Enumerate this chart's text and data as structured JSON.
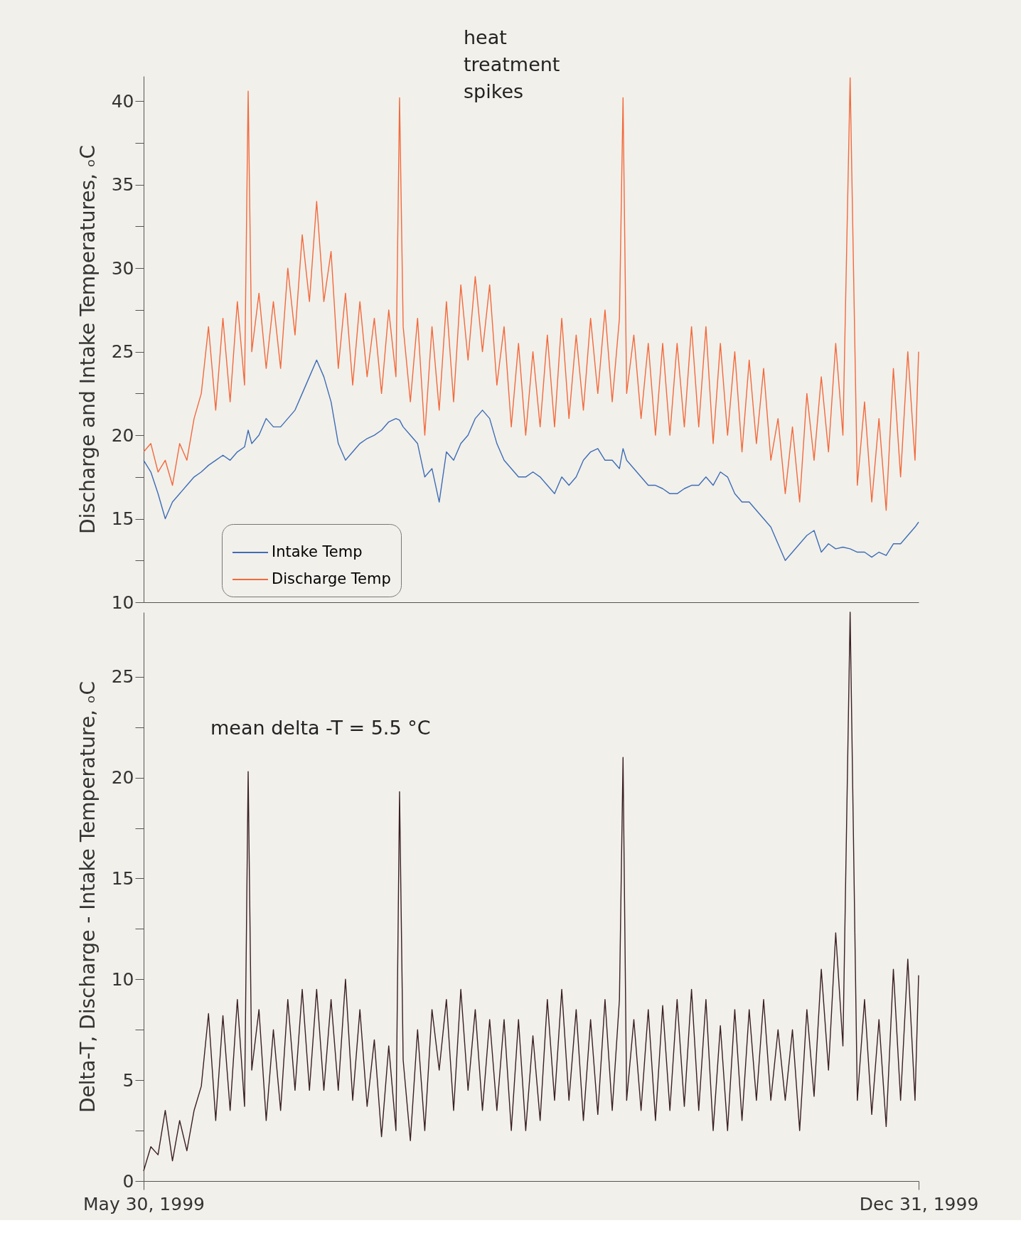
{
  "chart_data": [
    {
      "type": "line",
      "ylabel": "Discharge and Intake Temperatures, ₒC",
      "x": [
        "1999-05-30",
        "1999-06-01",
        "1999-06-03",
        "1999-06-05",
        "1999-06-07",
        "1999-06-09",
        "1999-06-11",
        "1999-06-13",
        "1999-06-15",
        "1999-06-17",
        "1999-06-19",
        "1999-06-21",
        "1999-06-23",
        "1999-06-25",
        "1999-06-27",
        "1999-06-28",
        "1999-06-29",
        "1999-07-01",
        "1999-07-03",
        "1999-07-05",
        "1999-07-07",
        "1999-07-09",
        "1999-07-11",
        "1999-07-13",
        "1999-07-15",
        "1999-07-17",
        "1999-07-19",
        "1999-07-21",
        "1999-07-23",
        "1999-07-25",
        "1999-07-27",
        "1999-07-29",
        "1999-07-31",
        "1999-08-02",
        "1999-08-04",
        "1999-08-06",
        "1999-08-08",
        "1999-08-09",
        "1999-08-10",
        "1999-08-12",
        "1999-08-14",
        "1999-08-16",
        "1999-08-18",
        "1999-08-20",
        "1999-08-22",
        "1999-08-24",
        "1999-08-26",
        "1999-08-28",
        "1999-08-30",
        "1999-09-01",
        "1999-09-03",
        "1999-09-05",
        "1999-09-07",
        "1999-09-09",
        "1999-09-11",
        "1999-09-13",
        "1999-09-15",
        "1999-09-17",
        "1999-09-19",
        "1999-09-21",
        "1999-09-23",
        "1999-09-25",
        "1999-09-27",
        "1999-09-29",
        "1999-10-01",
        "1999-10-03",
        "1999-10-05",
        "1999-10-07",
        "1999-10-09",
        "1999-10-10",
        "1999-10-11",
        "1999-10-13",
        "1999-10-15",
        "1999-10-17",
        "1999-10-19",
        "1999-10-21",
        "1999-10-23",
        "1999-10-25",
        "1999-10-27",
        "1999-10-29",
        "1999-10-31",
        "1999-11-02",
        "1999-11-04",
        "1999-11-06",
        "1999-11-08",
        "1999-11-10",
        "1999-11-12",
        "1999-11-14",
        "1999-11-16",
        "1999-11-18",
        "1999-11-20",
        "1999-11-22",
        "1999-11-24",
        "1999-11-26",
        "1999-11-28",
        "1999-11-30",
        "1999-12-02",
        "1999-12-04",
        "1999-12-06",
        "1999-12-08",
        "1999-12-10",
        "1999-12-12",
        "1999-12-14",
        "1999-12-16",
        "1999-12-18",
        "1999-12-20",
        "1999-12-22",
        "1999-12-24",
        "1999-12-26",
        "1999-12-28",
        "1999-12-30",
        "1999-12-31"
      ],
      "series": [
        {
          "name": "Intake Temp",
          "color": "#3d6db5",
          "values": [
            18.5,
            17.8,
            16.5,
            15.0,
            16.0,
            16.5,
            17.0,
            17.5,
            17.8,
            18.2,
            18.5,
            18.8,
            18.5,
            19.0,
            19.3,
            20.3,
            19.5,
            20.0,
            21.0,
            20.5,
            20.5,
            21.0,
            21.5,
            22.5,
            23.5,
            24.5,
            23.5,
            22.0,
            19.5,
            18.5,
            19.0,
            19.5,
            19.8,
            20.0,
            20.3,
            20.8,
            21.0,
            20.9,
            20.5,
            20.0,
            19.5,
            17.5,
            18.0,
            16.0,
            19.0,
            18.5,
            19.5,
            20.0,
            21.0,
            21.5,
            21.0,
            19.5,
            18.5,
            18.0,
            17.5,
            17.5,
            17.8,
            17.5,
            17.0,
            16.5,
            17.5,
            17.0,
            17.5,
            18.5,
            19.0,
            19.2,
            18.5,
            18.5,
            18.0,
            19.2,
            18.5,
            18.0,
            17.5,
            17.0,
            17.0,
            16.8,
            16.5,
            16.5,
            16.8,
            17.0,
            17.0,
            17.5,
            17.0,
            17.8,
            17.5,
            16.5,
            16.0,
            16.0,
            15.5,
            15.0,
            14.5,
            13.5,
            12.5,
            13.0,
            13.5,
            14.0,
            14.3,
            13.0,
            13.5,
            13.2,
            13.3,
            13.2,
            13.0,
            13.0,
            12.7,
            13.0,
            12.8,
            13.5,
            13.5,
            14.0,
            14.5,
            14.8
          ]
        },
        {
          "name": "Discharge Temp",
          "color": "#f26a3c",
          "values": [
            19.0,
            19.5,
            17.8,
            18.5,
            17.0,
            19.5,
            18.5,
            21.0,
            22.5,
            26.5,
            21.5,
            27.0,
            22.0,
            28.0,
            23.0,
            40.6,
            25.0,
            28.5,
            24.0,
            28.0,
            24.0,
            30.0,
            26.0,
            32.0,
            28.0,
            34.0,
            28.0,
            31.0,
            24.0,
            28.5,
            23.0,
            28.0,
            23.5,
            27.0,
            22.5,
            27.5,
            23.5,
            40.2,
            26.5,
            22.0,
            27.0,
            20.0,
            26.5,
            21.5,
            28.0,
            22.0,
            29.0,
            24.5,
            29.5,
            25.0,
            29.0,
            23.0,
            26.5,
            20.5,
            25.5,
            20.0,
            25.0,
            20.5,
            26.0,
            20.5,
            27.0,
            21.0,
            26.0,
            21.5,
            27.0,
            22.5,
            27.5,
            22.0,
            27.0,
            40.2,
            22.5,
            26.0,
            21.0,
            25.5,
            20.0,
            25.5,
            20.0,
            25.5,
            20.5,
            26.5,
            20.5,
            26.5,
            19.5,
            25.5,
            20.0,
            25.0,
            19.0,
            24.5,
            19.5,
            24.0,
            18.5,
            21.0,
            16.5,
            20.5,
            16.0,
            22.5,
            18.5,
            23.5,
            19.0,
            25.5,
            20.0,
            41.4,
            17.0,
            22.0,
            16.0,
            21.0,
            15.5,
            24.0,
            17.5,
            25.0,
            18.5,
            25.0
          ]
        }
      ],
      "xlim": [
        "1999-05-30",
        "1999-12-31"
      ],
      "ylim": [
        10,
        41.5
      ],
      "yticks": [
        10,
        {
          "value": 12.5,
          "label": null
        },
        15,
        {
          "value": 17.5,
          "label": null
        },
        20,
        {
          "value": 22.5,
          "label": null
        },
        25,
        {
          "value": 27.5,
          "label": null
        },
        30,
        {
          "value": 32.5,
          "label": null
        },
        35,
        {
          "value": 37.5,
          "label": null
        },
        40
      ],
      "tick_labels": "y",
      "legend": "bottom left",
      "grid": false,
      "annotations": [
        "heat treatment spikes"
      ]
    },
    {
      "type": "line",
      "ylabel": "Delta-T, Discharge - Intake Temperature, ₒC",
      "x": [
        "1999-05-30",
        "1999-06-01",
        "1999-06-03",
        "1999-06-05",
        "1999-06-07",
        "1999-06-09",
        "1999-06-11",
        "1999-06-13",
        "1999-06-15",
        "1999-06-17",
        "1999-06-19",
        "1999-06-21",
        "1999-06-23",
        "1999-06-25",
        "1999-06-27",
        "1999-06-28",
        "1999-06-29",
        "1999-07-01",
        "1999-07-03",
        "1999-07-05",
        "1999-07-07",
        "1999-07-09",
        "1999-07-11",
        "1999-07-13",
        "1999-07-15",
        "1999-07-17",
        "1999-07-19",
        "1999-07-21",
        "1999-07-23",
        "1999-07-25",
        "1999-07-27",
        "1999-07-29",
        "1999-07-31",
        "1999-08-02",
        "1999-08-04",
        "1999-08-06",
        "1999-08-08",
        "1999-08-09",
        "1999-08-10",
        "1999-08-12",
        "1999-08-14",
        "1999-08-16",
        "1999-08-18",
        "1999-08-20",
        "1999-08-22",
        "1999-08-24",
        "1999-08-26",
        "1999-08-28",
        "1999-08-30",
        "1999-09-01",
        "1999-09-03",
        "1999-09-05",
        "1999-09-07",
        "1999-09-09",
        "1999-09-11",
        "1999-09-13",
        "1999-09-15",
        "1999-09-17",
        "1999-09-19",
        "1999-09-21",
        "1999-09-23",
        "1999-09-25",
        "1999-09-27",
        "1999-09-29",
        "1999-10-01",
        "1999-10-03",
        "1999-10-05",
        "1999-10-07",
        "1999-10-09",
        "1999-10-10",
        "1999-10-11",
        "1999-10-13",
        "1999-10-15",
        "1999-10-17",
        "1999-10-19",
        "1999-10-21",
        "1999-10-23",
        "1999-10-25",
        "1999-10-27",
        "1999-10-29",
        "1999-10-31",
        "1999-11-02",
        "1999-11-04",
        "1999-11-06",
        "1999-11-08",
        "1999-11-10",
        "1999-11-12",
        "1999-11-14",
        "1999-11-16",
        "1999-11-18",
        "1999-11-20",
        "1999-11-22",
        "1999-11-24",
        "1999-11-26",
        "1999-11-28",
        "1999-11-30",
        "1999-12-02",
        "1999-12-04",
        "1999-12-06",
        "1999-12-08",
        "1999-12-10",
        "1999-12-12",
        "1999-12-14",
        "1999-12-16",
        "1999-12-18",
        "1999-12-20",
        "1999-12-22",
        "1999-12-24",
        "1999-12-26",
        "1999-12-28",
        "1999-12-30",
        "1999-12-31"
      ],
      "series": [
        {
          "color": "#3a2022",
          "values": [
            0.5,
            1.7,
            1.3,
            3.5,
            1.0,
            3.0,
            1.5,
            3.5,
            4.7,
            8.3,
            3.0,
            8.2,
            3.5,
            9.0,
            3.7,
            20.3,
            5.5,
            8.5,
            3.0,
            7.5,
            3.5,
            9.0,
            4.5,
            9.5,
            4.5,
            9.5,
            4.5,
            9.0,
            4.5,
            10.0,
            4.0,
            8.5,
            3.7,
            7.0,
            2.2,
            6.7,
            2.5,
            19.3,
            6.0,
            2.0,
            7.5,
            2.5,
            8.5,
            5.5,
            9.0,
            3.5,
            9.5,
            4.5,
            8.5,
            3.5,
            8.0,
            3.5,
            8.0,
            2.5,
            8.0,
            2.5,
            7.2,
            3.0,
            9.0,
            4.0,
            9.5,
            4.0,
            8.5,
            3.0,
            8.0,
            3.3,
            9.0,
            3.5,
            9.0,
            21.0,
            4.0,
            8.0,
            3.5,
            8.5,
            3.0,
            8.7,
            3.5,
            9.0,
            3.7,
            9.5,
            3.5,
            9.0,
            2.5,
            7.7,
            2.5,
            8.5,
            3.0,
            8.5,
            4.0,
            9.0,
            4.0,
            7.5,
            4.0,
            7.5,
            2.5,
            8.5,
            4.2,
            10.5,
            5.5,
            12.3,
            6.7,
            28.2,
            4.0,
            9.0,
            3.3,
            8.0,
            2.7,
            10.5,
            4.0,
            11.0,
            4.0,
            10.2
          ]
        }
      ],
      "xlim": [
        "1999-05-30",
        "1999-12-31"
      ],
      "xticks": [
        {
          "value": "1999-05-30",
          "label": "May 30, 1999"
        },
        {
          "value": "1999-12-31",
          "label": "Dec 31, 1999"
        }
      ],
      "ylim": [
        0,
        28.2
      ],
      "yticks": [
        0,
        {
          "value": 2.5,
          "label": null
        },
        5,
        {
          "value": 7.5,
          "label": null
        },
        10,
        {
          "value": 12.5,
          "label": null
        },
        15,
        {
          "value": 17.5,
          "label": null
        },
        20,
        {
          "value": 22.5,
          "label": null
        },
        25
      ],
      "grid": false,
      "annotations": [
        "mean delta -T = 5.5 °C"
      ]
    }
  ]
}
